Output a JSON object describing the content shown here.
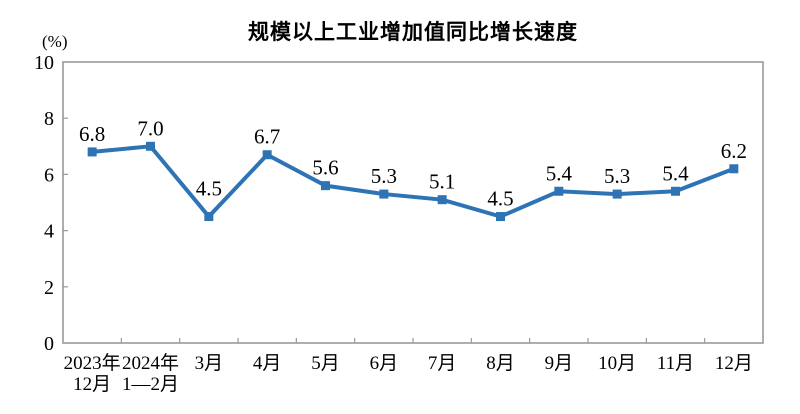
{
  "colors": {
    "line": "#2E74B5",
    "frame": "#999999",
    "text": "#000000",
    "background": "#FFFFFF"
  },
  "chart_data": {
    "type": "line",
    "title": "规模以上工业增加值同比增长速度",
    "ylabel": "(%)",
    "xlabel": "",
    "categories": [
      "2023年12月",
      "2024年1—2月",
      "3月",
      "4月",
      "5月",
      "6月",
      "7月",
      "8月",
      "9月",
      "10月",
      "11月",
      "12月"
    ],
    "category_lines": [
      [
        "2023年",
        "12月"
      ],
      [
        "2024年",
        "1—2月"
      ],
      [
        "3月"
      ],
      [
        "4月"
      ],
      [
        "5月"
      ],
      [
        "6月"
      ],
      [
        "7月"
      ],
      [
        "8月"
      ],
      [
        "9月"
      ],
      [
        "10月"
      ],
      [
        "11月"
      ],
      [
        "12月"
      ]
    ],
    "values": [
      6.8,
      7.0,
      4.5,
      6.7,
      5.6,
      5.3,
      5.1,
      4.5,
      5.4,
      5.3,
      5.4,
      6.2
    ],
    "data_labels": [
      "6.8",
      "7.0",
      "4.5",
      "6.7",
      "5.6",
      "5.3",
      "5.1",
      "4.5",
      "5.4",
      "5.3",
      "5.4",
      "6.2"
    ],
    "y_ticks": [
      0,
      2,
      4,
      6,
      8,
      10
    ],
    "ylim": [
      0,
      10
    ],
    "grid": false,
    "legend": "none",
    "marker": "square",
    "line_color": "#2E74B5"
  }
}
